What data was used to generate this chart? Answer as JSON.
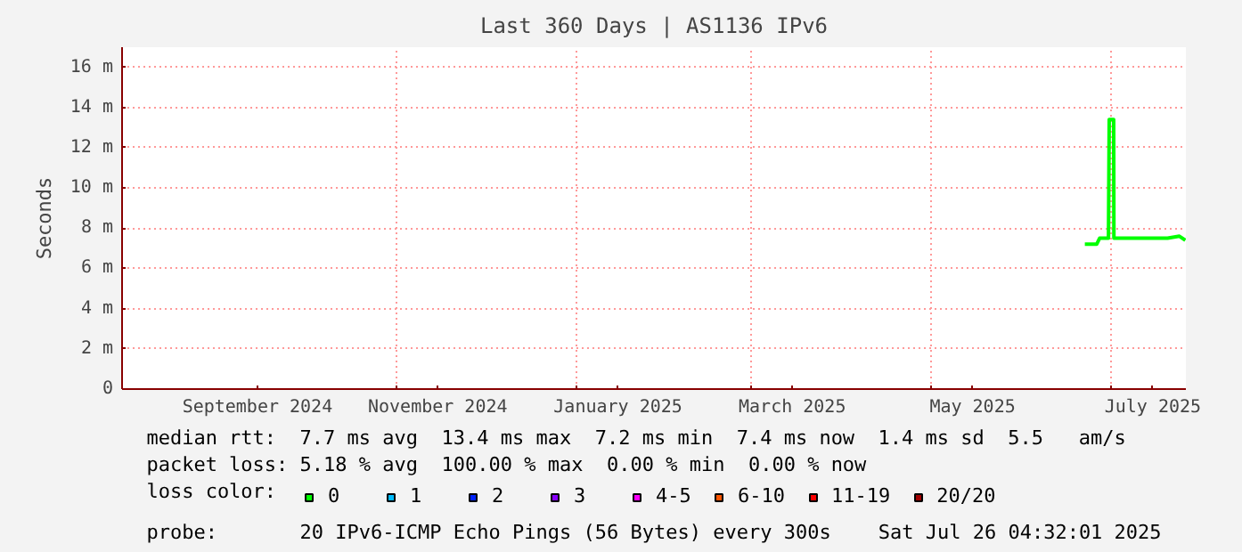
{
  "chart_data": {
    "type": "line",
    "title": "Last 360 Days | AS1136 IPv6",
    "ylabel": "Seconds",
    "x": [
      "2025-06-22",
      "2025-06-24",
      "2025-06-26",
      "2025-06-27",
      "2025-06-29",
      "2025-06-30",
      "2025-06-30T06:00",
      "2025-07-01T18:00",
      "2025-07-01T20:00",
      "2025-07-05",
      "2025-07-10",
      "2025-07-15",
      "2025-07-20",
      "2025-07-24",
      "2025-07-26"
    ],
    "series": [
      {
        "name": "0",
        "color": "#00ff00",
        "values": [
          7.2,
          7.2,
          7.2,
          7.5,
          7.5,
          7.5,
          13.4,
          13.4,
          7.5,
          7.5,
          7.5,
          7.5,
          7.5,
          7.6,
          7.4
        ]
      },
      {
        "name": "1",
        "color": "#00bbff",
        "values": [
          null,
          null,
          null,
          null,
          null,
          null,
          null,
          null,
          null,
          null,
          null,
          null,
          null,
          null,
          null
        ]
      },
      {
        "name": "2",
        "color": "#0022ff",
        "values": [
          null,
          null,
          null,
          null,
          null,
          null,
          null,
          null,
          null,
          null,
          null,
          null,
          null,
          null,
          null
        ]
      },
      {
        "name": "3",
        "color": "#8800ff",
        "values": [
          null,
          null,
          null,
          null,
          null,
          null,
          null,
          null,
          null,
          null,
          null,
          null,
          null,
          null,
          null
        ]
      },
      {
        "name": "4-5",
        "color": "#ff00ff",
        "values": [
          null,
          null,
          null,
          null,
          null,
          null,
          null,
          null,
          null,
          null,
          null,
          null,
          null,
          null,
          null
        ]
      },
      {
        "name": "6-10",
        "color": "#ff5500",
        "values": [
          null,
          null,
          null,
          null,
          null,
          null,
          null,
          null,
          null,
          null,
          null,
          null,
          null,
          null,
          null
        ]
      },
      {
        "name": "11-19",
        "color": "#ff0000",
        "values": [
          null,
          null,
          null,
          null,
          null,
          null,
          null,
          null,
          null,
          null,
          null,
          null,
          null,
          null,
          null
        ]
      },
      {
        "name": "20/20",
        "color": "#a10000",
        "values": [
          null,
          null,
          null,
          null,
          null,
          null,
          null,
          null,
          null,
          null,
          null,
          null,
          null,
          null,
          null
        ]
      }
    ],
    "xlim": [
      "2024-07-31T04:32",
      "2025-07-26T04:32"
    ],
    "xticks": [
      {
        "value": "2024-09-15",
        "label": "September 2024"
      },
      {
        "value": "2024-11-01",
        "label": null
      },
      {
        "value": "2024-11-15",
        "label": "November 2024"
      },
      {
        "value": "2025-01-01",
        "label": null
      },
      {
        "value": "2025-01-15",
        "label": "January 2025"
      },
      {
        "value": "2025-03-01",
        "label": null
      },
      {
        "value": "2025-03-15",
        "label": "March 2025"
      },
      {
        "value": "2025-05-01",
        "label": null
      },
      {
        "value": "2025-05-15",
        "label": "May 2025"
      },
      {
        "value": "2025-07-01",
        "label": null
      },
      {
        "value": "2025-07-15",
        "label": "July 2025"
      }
    ],
    "ylim": [
      0,
      17
    ],
    "yticks": [
      {
        "value": 0,
        "label": "0"
      },
      {
        "value": 2,
        "label": "2 m"
      },
      {
        "value": 4,
        "label": "4 m"
      },
      {
        "value": 6,
        "label": "6 m"
      },
      {
        "value": 8,
        "label": "8 m"
      },
      {
        "value": 10,
        "label": "10 m"
      },
      {
        "value": 12,
        "label": "12 m"
      },
      {
        "value": 14,
        "label": "14 m"
      },
      {
        "value": 16,
        "label": "16 m"
      }
    ],
    "grid": true,
    "legend": "bottom",
    "legend_title": "loss color:",
    "annotations": [
      "median rtt:  7.7 ms avg  13.4 ms max  7.2 ms min  7.4 ms now  1.4 ms sd  5.5   am/s",
      "packet loss: 5.18 % avg  100.00 % max  0.00 % min  0.00 % now",
      "probe:       20 IPv6-ICMP Echo Pings (56 Bytes) every 300s",
      "Sat Jul 26 04:32:01 2025"
    ]
  }
}
